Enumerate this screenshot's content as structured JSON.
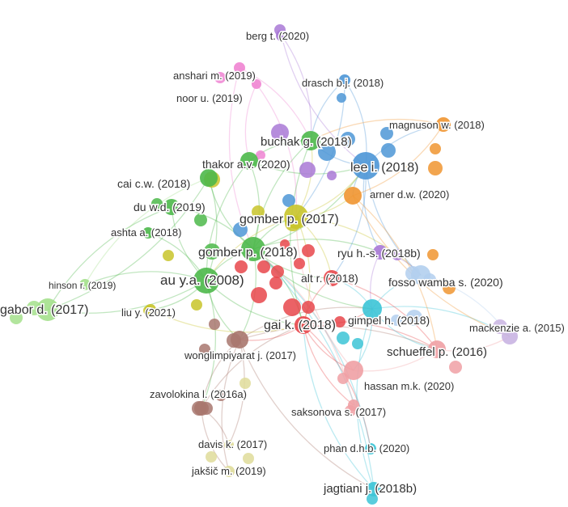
{
  "clusters": {
    "red": "#e8474b",
    "green": "#4cb84a",
    "blue": "#4d96d6",
    "yellow": "#c8c42a",
    "purple": "#a979d6",
    "cyan": "#3cc4d6",
    "orange": "#f09530",
    "brown": "#a8776e",
    "pink": "#ef84d2",
    "lightgreen": "#a4e08c",
    "salmon": "#f0a0a4",
    "khaki": "#dfdc9a",
    "lightblue": "#b3cfee",
    "lavender": "#c9b4e2"
  },
  "nodes": [
    {
      "id": "berg",
      "label": "berg t. (2020)",
      "cluster": "purple"
    },
    {
      "id": "anshari",
      "label": "anshari m. (2019)",
      "cluster": "pink"
    },
    {
      "id": "noor",
      "label": "noor u. (2019)",
      "cluster": "pink"
    },
    {
      "id": "drasch",
      "label": "drasch b.j. (2018)",
      "cluster": "blue"
    },
    {
      "id": "magnuson",
      "label": "magnuson w. (2018)",
      "cluster": "orange"
    },
    {
      "id": "buchak",
      "label": "buchak g. (2018)",
      "cluster": "green"
    },
    {
      "id": "thakor",
      "label": "thakor a.v. (2020)",
      "cluster": "green"
    },
    {
      "id": "lee",
      "label": "lee i. (2018)",
      "cluster": "blue"
    },
    {
      "id": "cai",
      "label": "cai c.w. (2018)",
      "cluster": "green"
    },
    {
      "id": "arner",
      "label": "arner d.w. (2020)",
      "cluster": "orange"
    },
    {
      "id": "du",
      "label": "du w.d. (2019)",
      "cluster": "green"
    },
    {
      "id": "gomber2017",
      "label": "gomber p. (2017)",
      "cluster": "yellow"
    },
    {
      "id": "ashta",
      "label": "ashta a. (2018)",
      "cluster": "green"
    },
    {
      "id": "gomber2018",
      "label": "gomber p. (2018)",
      "cluster": "green"
    },
    {
      "id": "ryu",
      "label": "ryu h.-s. (2018b)",
      "cluster": "purple"
    },
    {
      "id": "au",
      "label": "au y.a. (2008)",
      "cluster": "green"
    },
    {
      "id": "alt",
      "label": "alt r. (2018)",
      "cluster": "red"
    },
    {
      "id": "fosso",
      "label": "fosso wamba s. (2020)",
      "cluster": "lightblue"
    },
    {
      "id": "hinson",
      "label": "hinson r. (2019)",
      "cluster": "lightgreen"
    },
    {
      "id": "gabor",
      "label": "gabor d. (2017)",
      "cluster": "lightgreen"
    },
    {
      "id": "liu",
      "label": "liu y. (2021)",
      "cluster": "yellow"
    },
    {
      "id": "gai",
      "label": "gai k. (2018)",
      "cluster": "red"
    },
    {
      "id": "gimpel",
      "label": "gimpel h. (2018)",
      "cluster": "cyan"
    },
    {
      "id": "mackenzie",
      "label": "mackenzie a. (2015)",
      "cluster": "lavender"
    },
    {
      "id": "schueffel",
      "label": "schueffel p. (2016)",
      "cluster": "salmon"
    },
    {
      "id": "wonglimpiyarat",
      "label": "wonglimpiyarat j. (2017)",
      "cluster": "brown"
    },
    {
      "id": "hassan",
      "label": "hassan m.k. (2020)",
      "cluster": "salmon"
    },
    {
      "id": "zavolokina",
      "label": "zavolokina l. (2016a)",
      "cluster": "brown"
    },
    {
      "id": "saksonova",
      "label": "saksonova s. (2017)",
      "cluster": "salmon"
    },
    {
      "id": "davis",
      "label": "davis k. (2017)",
      "cluster": "khaki"
    },
    {
      "id": "phan",
      "label": "phan d.h.b. (2020)",
      "cluster": "cyan"
    },
    {
      "id": "jaksic",
      "label": "jakšič m. (2019)",
      "cluster": "khaki"
    },
    {
      "id": "jagtiani",
      "label": "jagtiani j. (2018b)",
      "cluster": "cyan"
    }
  ]
}
